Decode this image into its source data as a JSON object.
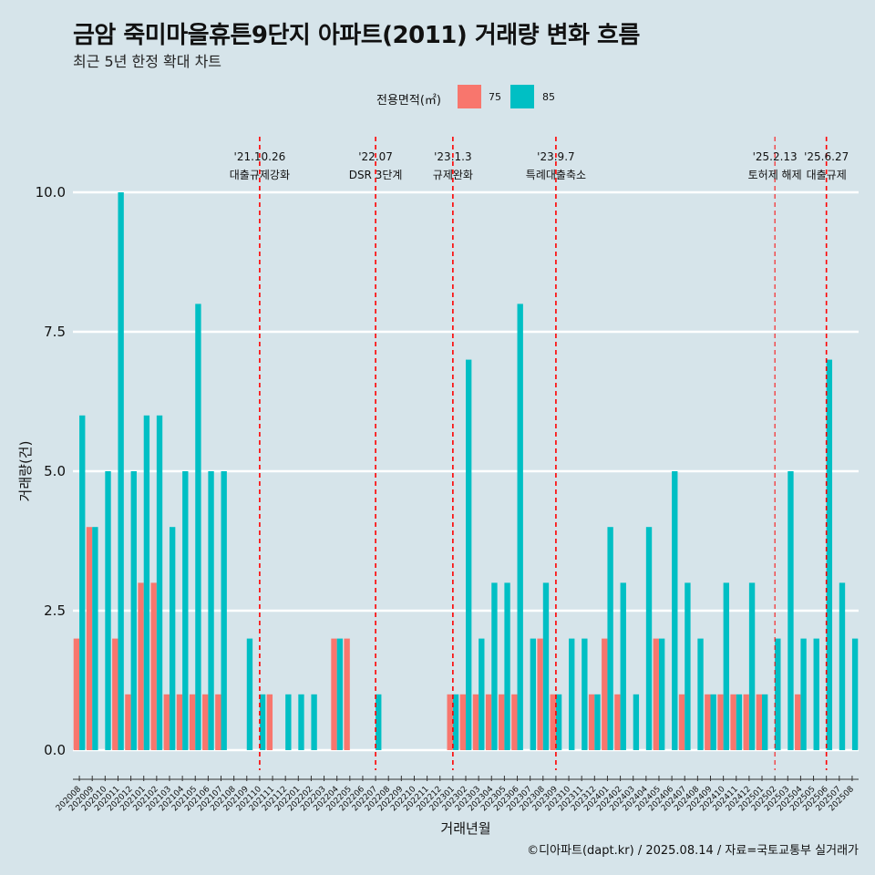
{
  "title": "금암 죽미마을휴튼9단지 아파트(2011) 거래량 변화 흐름",
  "subtitle": "최근 5년 한정 확대 차트",
  "caption": "©디아파트(dapt.kr) / 2025.08.14 / 자료=국토교통부 실거래가",
  "colors": {
    "75": "#f8766d",
    "85": "#00bfc4",
    "background": "#d6e4ea",
    "grid": "#ffffff",
    "annotation": "#ff0000"
  },
  "chart_data": {
    "type": "bar",
    "title": "금암 죽미마을휴튼9단지 아파트(2011) 거래량 변화 흐름",
    "xlabel": "거래년월",
    "ylabel": "거래량(건)",
    "ylim": [
      -0.4,
      10.7
    ],
    "yticks": [
      0.0,
      2.5,
      5.0,
      7.5,
      10.0
    ],
    "ytick_labels": [
      "0.0",
      "2.5",
      "5.0",
      "7.5",
      "10.0"
    ],
    "legend_title": "전용면적(㎡)",
    "categories": [
      "202008",
      "202009",
      "202010",
      "202011",
      "202012",
      "202101",
      "202102",
      "202103",
      "202104",
      "202105",
      "202106",
      "202107",
      "202108",
      "202109",
      "202110",
      "202111",
      "202112",
      "202201",
      "202202",
      "202203",
      "202204",
      "202205",
      "202206",
      "202207",
      "202208",
      "202209",
      "202210",
      "202211",
      "202212",
      "202301",
      "202302",
      "202303",
      "202304",
      "202305",
      "202306",
      "202307",
      "202308",
      "202309",
      "202310",
      "202311",
      "202312",
      "202401",
      "202402",
      "202403",
      "202404",
      "202405",
      "202406",
      "202407",
      "202408",
      "202409",
      "202410",
      "202411",
      "202412",
      "202501",
      "202502",
      "202503",
      "202504",
      "202505",
      "202506",
      "202507",
      "202508"
    ],
    "series": [
      {
        "name": "75",
        "values": [
          2,
          4,
          0,
          2,
          1,
          3,
          3,
          1,
          1,
          1,
          1,
          1,
          0,
          0,
          0,
          1,
          0,
          0,
          0,
          0,
          2,
          2,
          0,
          0,
          0,
          0,
          0,
          0,
          0,
          1,
          1,
          1,
          1,
          1,
          1,
          0,
          2,
          1,
          0,
          0,
          1,
          2,
          1,
          0,
          0,
          2,
          0,
          1,
          0,
          1,
          1,
          1,
          1,
          1,
          0,
          0,
          1,
          0,
          0,
          0,
          0
        ]
      },
      {
        "name": "85",
        "values": [
          6,
          4,
          5,
          10,
          5,
          6,
          6,
          4,
          5,
          8,
          5,
          5,
          0,
          2,
          1,
          0,
          1,
          1,
          1,
          0,
          2,
          0,
          0,
          1,
          0,
          0,
          0,
          0,
          0,
          1,
          7,
          2,
          3,
          3,
          8,
          2,
          3,
          1,
          2,
          2,
          1,
          4,
          3,
          1,
          4,
          2,
          5,
          3,
          2,
          1,
          3,
          1,
          3,
          1,
          2,
          5,
          2,
          2,
          7,
          3,
          2
        ]
      }
    ],
    "annotations": [
      {
        "category": "202110",
        "date": "'21.10.26",
        "label": "대출규제강화"
      },
      {
        "category": "202207",
        "date": "'22.07",
        "label": "DSR 3단계"
      },
      {
        "category": "202301",
        "date": "'23.1.3",
        "label": "규제완화"
      },
      {
        "category": "202309",
        "date": "'23.9.7",
        "label": "특례대출축소"
      },
      {
        "category": "202502",
        "date": "'25.2.13",
        "label": "토허제 해제"
      },
      {
        "category": "202506",
        "date": "'25.6.27",
        "label": "대출규제"
      }
    ]
  }
}
